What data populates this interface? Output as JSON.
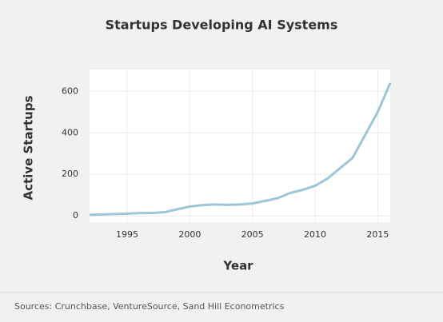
{
  "chart_data": {
    "type": "line",
    "title": "Startups Developing AI Systems",
    "x_label": "Year",
    "y_label": "Active Startups",
    "source": "Sources: Crunchbase, VentureSource, Sand Hill Econometrics",
    "x": [
      1992,
      1993,
      1994,
      1995,
      1996,
      1997,
      1998,
      1999,
      2000,
      2001,
      2002,
      2003,
      2004,
      2005,
      2006,
      2007,
      2008,
      2009,
      2010,
      2011,
      2012,
      2013,
      2014,
      2015,
      2016
    ],
    "series": [
      {
        "name": "Active Startups",
        "color": "#9fc5d8",
        "values": [
          5,
          7,
          9,
          11,
          14,
          14,
          18,
          32,
          45,
          52,
          55,
          53,
          55,
          60,
          72,
          85,
          110,
          125,
          145,
          180,
          230,
          280,
          390,
          500,
          640
        ]
      }
    ],
    "xlim": [
      1992,
      2016
    ],
    "xticks": [
      1995,
      2000,
      2005,
      2010,
      2015
    ],
    "ylim": [
      -30,
      705
    ],
    "yticks": [
      0,
      200,
      400,
      600
    ],
    "grid": true
  }
}
